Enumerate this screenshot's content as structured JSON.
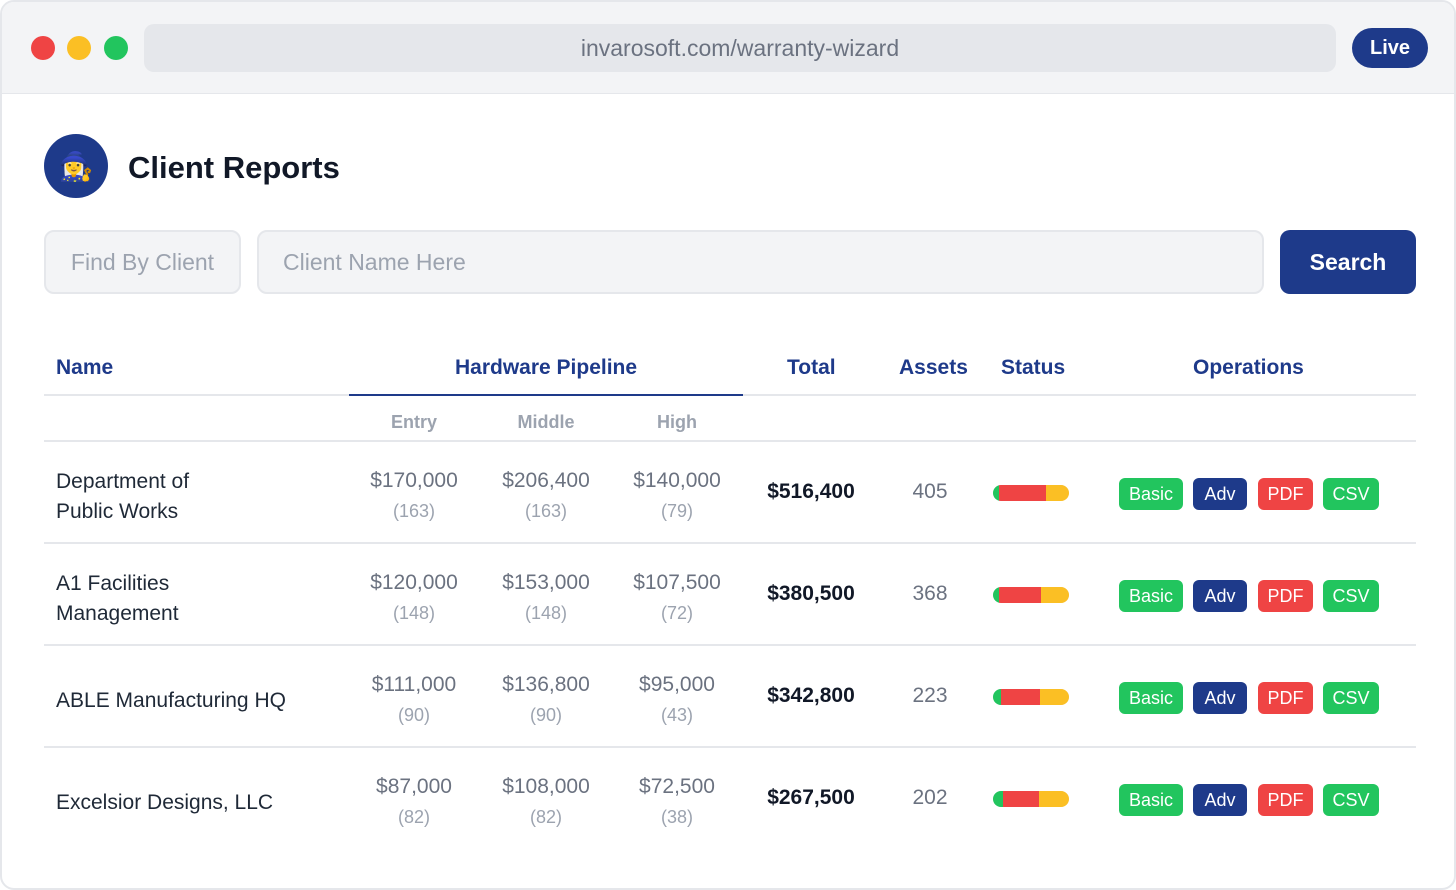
{
  "browser": {
    "url": "invarosoft.com/warranty-wizard",
    "badge": "Live"
  },
  "header": {
    "avatar_emoji": "🧙‍♀️",
    "title": "Client Reports"
  },
  "search": {
    "label": "Find By Client",
    "placeholder": "Client Name Here",
    "button": "Search"
  },
  "table": {
    "headers": {
      "name": "Name",
      "pipeline": "Hardware Pipeline",
      "total": "Total",
      "assets": "Assets",
      "status": "Status",
      "operations": "Operations"
    },
    "subheaders": {
      "entry": "Entry",
      "middle": "Middle",
      "high": "High"
    },
    "operations": {
      "basic": "Basic",
      "adv": "Adv",
      "pdf": "PDF",
      "csv": "CSV"
    },
    "rows": [
      {
        "name_line1": "Department of",
        "name_line2": "Public Works",
        "entry": "$170,000",
        "entry_count": "(163)",
        "middle": "$206,400",
        "middle_count": "(163)",
        "high": "$140,000",
        "high_count": "(79)",
        "total": "$516,400",
        "assets": "405",
        "status_split": [
          0.08,
          0.62,
          0.3
        ]
      },
      {
        "name_line1": "A1 Facilities",
        "name_line2": "Management",
        "entry": "$120,000",
        "entry_count": "(148)",
        "middle": "$153,000",
        "middle_count": "(148)",
        "high": "$107,500",
        "high_count": "(72)",
        "total": "$380,500",
        "assets": "368",
        "status_split": [
          0.08,
          0.55,
          0.37
        ]
      },
      {
        "name_line1": "ABLE Manufacturing HQ",
        "name_line2": "",
        "entry": "$111,000",
        "entry_count": "(90)",
        "middle": "$136,800",
        "middle_count": "(90)",
        "high": "$95,000",
        "high_count": "(43)",
        "total": "$342,800",
        "assets": "223",
        "status_split": [
          0.1,
          0.52,
          0.38
        ]
      },
      {
        "name_line1": "Excelsior Designs, LLC",
        "name_line2": "",
        "entry": "$87,000",
        "entry_count": "(82)",
        "middle": "$108,000",
        "middle_count": "(82)",
        "high": "$72,500",
        "high_count": "(38)",
        "total": "$267,500",
        "assets": "202",
        "status_split": [
          0.13,
          0.47,
          0.4
        ]
      }
    ]
  }
}
